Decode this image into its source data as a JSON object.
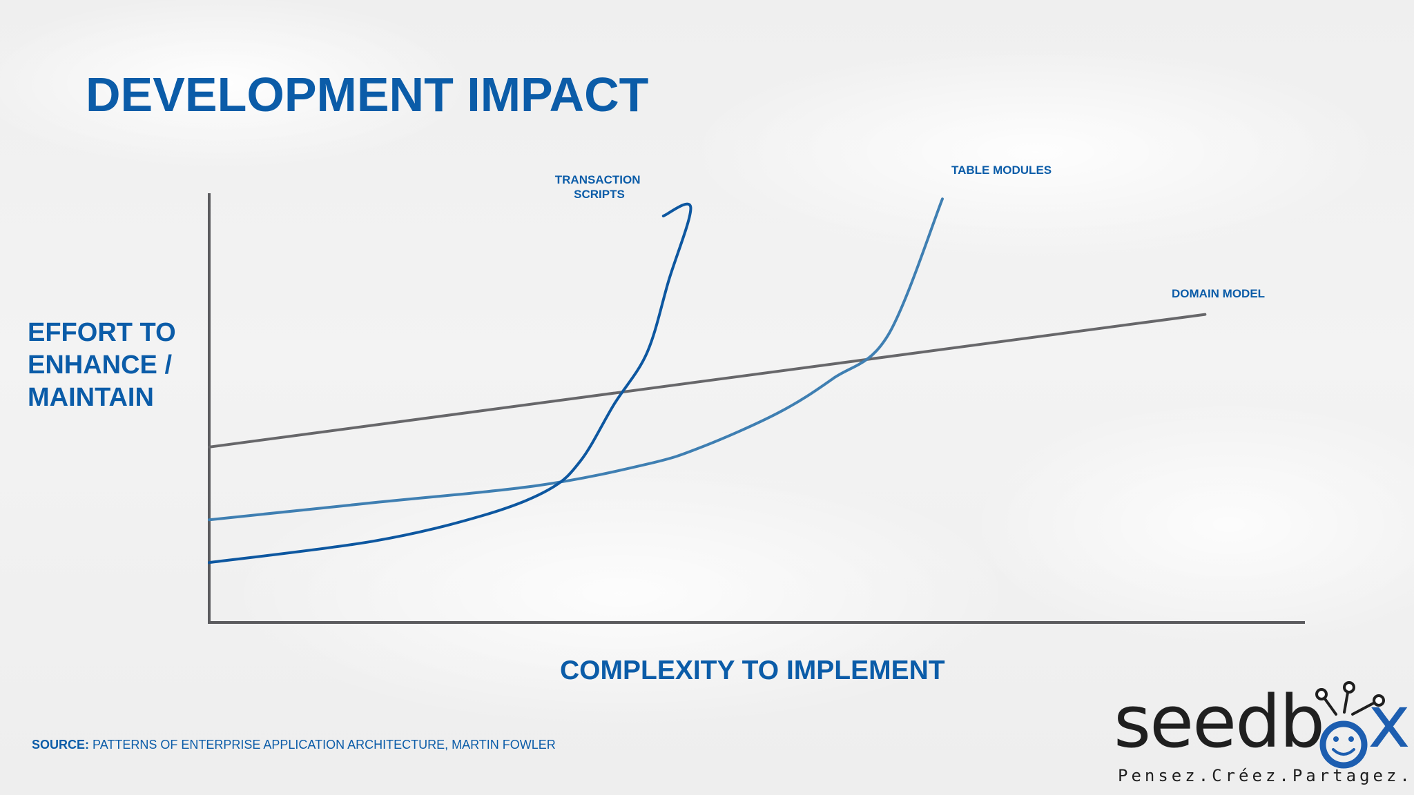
{
  "slide": {
    "title": "DEVELOPMENT IMPACT",
    "source_label": "SOURCE:",
    "source_text": "PATTERNS OF ENTERPRISE APPLICATION ARCHITECTURE, MARTIN FOWLER"
  },
  "logo": {
    "word_main": "seedb",
    "word_accent": "x",
    "tagline": "Pensez.Créez.Partagez.",
    "colors": {
      "dark": "#1f1f1f",
      "blue": "#1d5eb0"
    }
  },
  "chart_data": {
    "type": "line",
    "xlabel": "COMPLEXITY TO IMPLEMENT",
    "ylabel_lines": [
      "EFFORT TO",
      "ENHANCE /",
      "MAINTAIN"
    ],
    "xlim": [
      0,
      100
    ],
    "ylim": [
      0,
      100
    ],
    "grid": false,
    "axis_color": "#5b5b5e",
    "series": [
      {
        "name": "DOMAIN MODEL",
        "color": "#67676a",
        "points": [
          [
            0,
            41
          ],
          [
            20,
            48
          ],
          [
            40,
            55
          ],
          [
            60,
            61
          ],
          [
            80,
            68
          ],
          [
            91,
            72
          ]
        ]
      },
      {
        "name": "TABLE MODULES",
        "color": "#3f7fb2",
        "points": [
          [
            0,
            24
          ],
          [
            15,
            28
          ],
          [
            30,
            32
          ],
          [
            40,
            37
          ],
          [
            45,
            41
          ],
          [
            52,
            49
          ],
          [
            57,
            57
          ],
          [
            62,
            67
          ],
          [
            67,
            99
          ]
        ]
      },
      {
        "name_lines": [
          "TRANSACTION",
          "SCRIPTS"
        ],
        "color": "#0d57a0",
        "points": [
          [
            0,
            14
          ],
          [
            15,
            19
          ],
          [
            25,
            25
          ],
          [
            31,
            31
          ],
          [
            34,
            38
          ],
          [
            37,
            51
          ],
          [
            40,
            63
          ],
          [
            42,
            80
          ],
          [
            44,
            97
          ],
          [
            41.5,
            95
          ]
        ]
      }
    ]
  }
}
